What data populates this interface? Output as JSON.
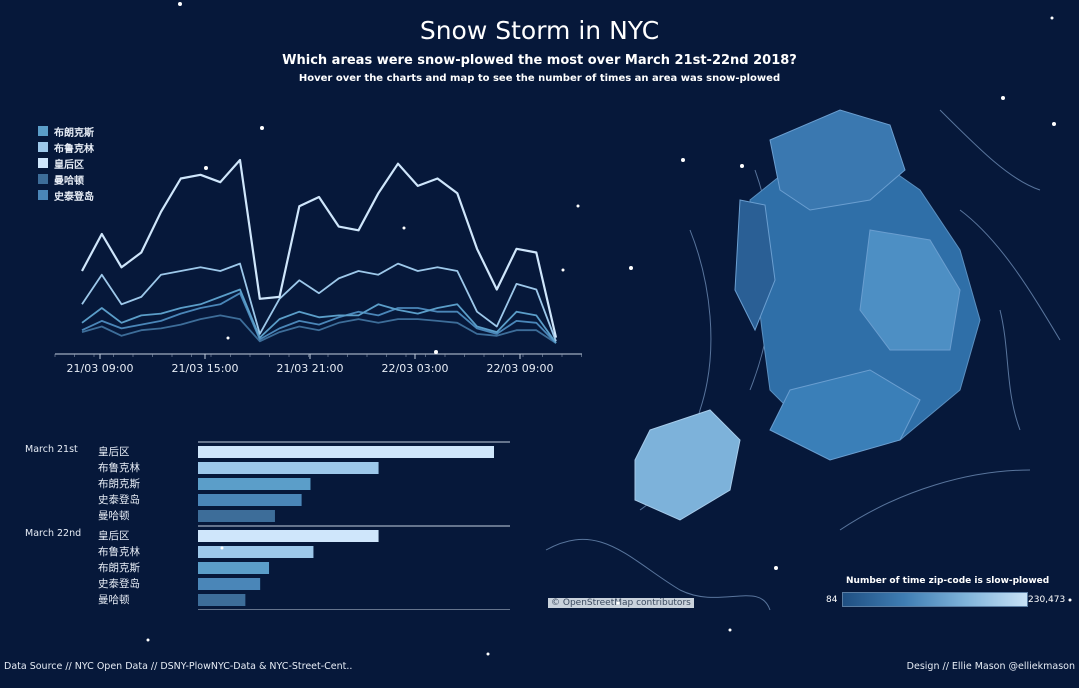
{
  "header": {
    "title": "Snow Storm in NYC",
    "subtitle": "Which areas were snow-plowed the most over March 21st-22nd 2018?",
    "hint": "Hover over the charts and map to see the number of times an area was snow-plowed"
  },
  "colors": {
    "background": "#06183a",
    "布朗克斯": "#5b9ec9",
    "布鲁克林": "#9dc8ea",
    "皇后区": "#cfe6fb",
    "曼哈顿": "#3d6d99",
    "史泰登岛": "#4a86b8"
  },
  "chart_data": [
    {
      "type": "line",
      "x_ticks": [
        "21/03 09:00",
        "21/03 15:00",
        "21/03 21:00",
        "22/03 03:00",
        "22/03 09:00"
      ],
      "legend_position": "top-left",
      "grid": false,
      "series": [
        {
          "name": "布朗克斯",
          "values": [
            12,
            20,
            12,
            16,
            17,
            20,
            22,
            26,
            30,
            4,
            14,
            18,
            15,
            16,
            16,
            22,
            19,
            17,
            20,
            22,
            10,
            7,
            18,
            16,
            1
          ]
        },
        {
          "name": "布鲁克林",
          "values": [
            22,
            38,
            22,
            26,
            38,
            40,
            42,
            40,
            44,
            6,
            25,
            35,
            28,
            36,
            40,
            38,
            44,
            40,
            42,
            40,
            18,
            10,
            33,
            30,
            2
          ]
        },
        {
          "name": "皇后区",
          "values": [
            40,
            60,
            42,
            50,
            72,
            90,
            92,
            88,
            100,
            25,
            26,
            75,
            80,
            64,
            62,
            82,
            98,
            86,
            90,
            82,
            52,
            30,
            52,
            50,
            4
          ]
        },
        {
          "name": "曼哈顿",
          "values": [
            7,
            10,
            5,
            8,
            9,
            11,
            14,
            16,
            14,
            2,
            7,
            10,
            8,
            12,
            14,
            12,
            14,
            14,
            13,
            12,
            6,
            5,
            8,
            8,
            1
          ]
        },
        {
          "name": "史泰登岛",
          "values": [
            8,
            13,
            9,
            11,
            13,
            17,
            20,
            22,
            28,
            3,
            9,
            13,
            11,
            15,
            18,
            16,
            20,
            20,
            18,
            18,
            9,
            6,
            13,
            12,
            1
          ]
        }
      ]
    },
    {
      "type": "bar",
      "groups": [
        {
          "label": "March 21st",
          "bars": [
            {
              "category": "皇后区",
              "value": 100,
              "color": "#cfe6fb"
            },
            {
              "category": "布鲁克林",
              "value": 61,
              "color": "#9dc8ea"
            },
            {
              "category": "布朗克斯",
              "value": 38,
              "color": "#5b9ec9"
            },
            {
              "category": "史泰登岛",
              "value": 35,
              "color": "#4a86b8"
            },
            {
              "category": "曼哈顿",
              "value": 26,
              "color": "#3d6d99"
            }
          ]
        },
        {
          "label": "March 22nd",
          "bars": [
            {
              "category": "皇后区",
              "value": 61,
              "color": "#cfe6fb"
            },
            {
              "category": "布鲁克林",
              "value": 39,
              "color": "#9dc8ea"
            },
            {
              "category": "布朗克斯",
              "value": 24,
              "color": "#5b9ec9"
            },
            {
              "category": "史泰登岛",
              "value": 21,
              "color": "#4a86b8"
            },
            {
              "category": "曼哈顿",
              "value": 16,
              "color": "#3d6d99"
            }
          ]
        }
      ]
    }
  ],
  "map": {
    "attribution": "© OpenStreetMap contributors",
    "legend_title": "Number of time zip-code is slow-plowed",
    "legend_min": "84",
    "legend_max": "230,473"
  },
  "footer": {
    "source": "Data Source // NYC Open Data // DSNY-PlowNYC-Data & NYC-Street-Cent..",
    "credit": "Design // Ellie Mason @elliekmason"
  }
}
